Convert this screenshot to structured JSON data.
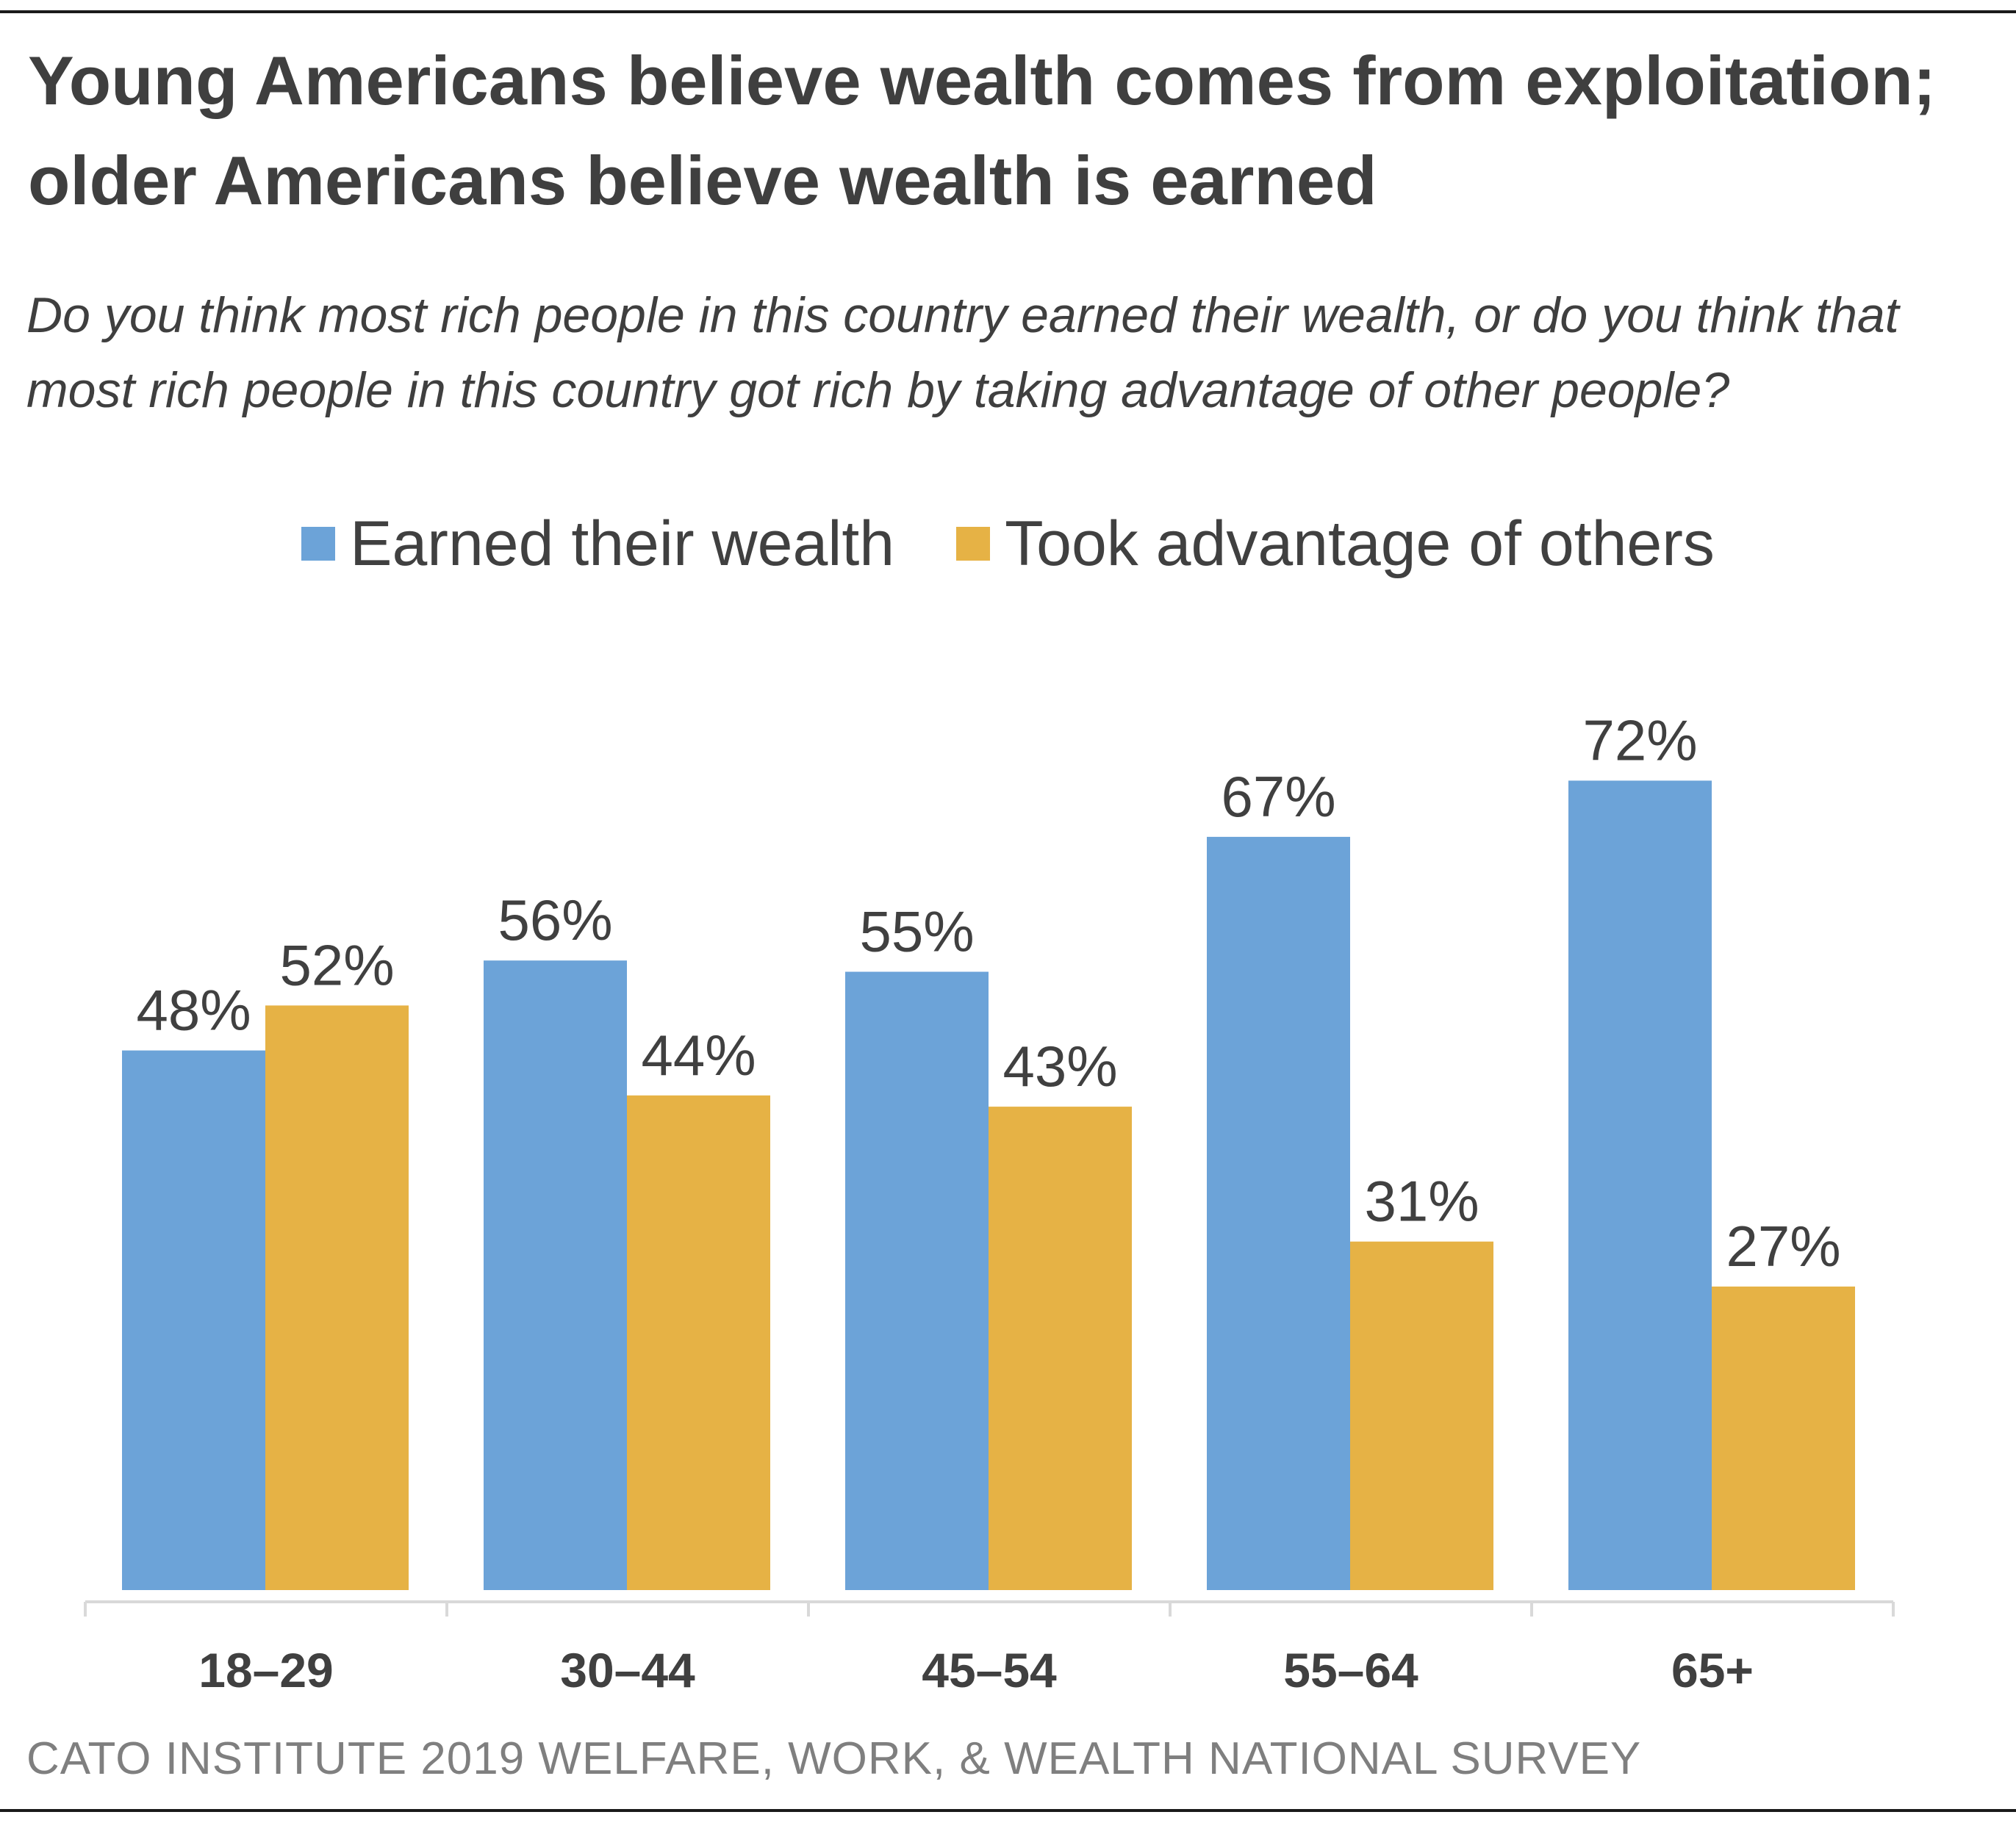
{
  "title": "Young Americans believe wealth comes from exploitation; older Americans believe wealth is earned",
  "subtitle": "Do you think most rich people in this country earned their wealth, or do you think that most rich people in this country got rich by taking advantage of other people?",
  "source": "CATO INSTITUTE 2019 WELFARE, WORK, & WEALTH NATIONAL SURVEY",
  "legend": [
    {
      "label": "Earned their wealth",
      "color": "#6ca3d8"
    },
    {
      "label": "Took advantage of others",
      "color": "#e6b245"
    }
  ],
  "chart_data": {
    "type": "bar",
    "categories": [
      "18–29",
      "30–44",
      "45–54",
      "55–64",
      "65+"
    ],
    "series": [
      {
        "name": "Earned their wealth",
        "color": "#6ca3d8",
        "values": [
          48,
          56,
          55,
          67,
          72
        ],
        "labels": [
          "48%",
          "56%",
          "55%",
          "67%",
          "72%"
        ]
      },
      {
        "name": "Took advantage of others",
        "color": "#e6b245",
        "values": [
          52,
          44,
          43,
          31,
          27
        ],
        "labels": [
          "52%",
          "44%",
          "43%",
          "31%",
          "27%"
        ]
      }
    ],
    "ylim": [
      0,
      100
    ],
    "grid": false,
    "legend_position": "top"
  }
}
